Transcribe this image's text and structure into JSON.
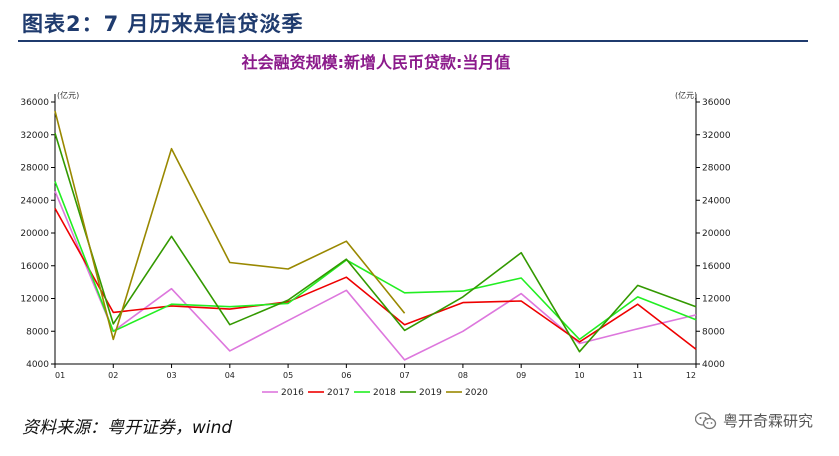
{
  "header": {
    "title": "图表2：7 月历来是信贷淡季"
  },
  "footer": {
    "source": "资料来源：粤开证券，wind",
    "watermark": "粤开奇霖研究"
  },
  "chart_data": {
    "type": "line",
    "title": "社会融资规模:新增人民币贷款:当月值",
    "unit_left": "(亿元)",
    "unit_right": "(亿元)",
    "categories": [
      "01",
      "02",
      "03",
      "04",
      "05",
      "06",
      "07",
      "08",
      "09",
      "10",
      "11",
      "12"
    ],
    "ylim": [
      4000,
      36000
    ],
    "yticks": [
      4000,
      8000,
      12000,
      16000,
      20000,
      24000,
      28000,
      32000,
      36000
    ],
    "grid": false,
    "legend_position": "bottom",
    "series": [
      {
        "name": "2016",
        "color": "#dd77dd",
        "values": [
          25100,
          8000,
          13200,
          5600,
          9300,
          13000,
          4500,
          8000,
          12600,
          6500,
          8300,
          10000
        ]
      },
      {
        "name": "2017",
        "color": "#ee0000",
        "values": [
          23000,
          10300,
          11100,
          10700,
          11600,
          14600,
          8800,
          11500,
          11700,
          6700,
          11300,
          5800
        ]
      },
      {
        "name": "2018",
        "color": "#22ee22",
        "values": [
          26300,
          8000,
          11300,
          11000,
          11400,
          16700,
          12700,
          12900,
          14500,
          7000,
          12200,
          9400
        ]
      },
      {
        "name": "2019",
        "color": "#339900",
        "values": [
          32200,
          8900,
          19600,
          8800,
          11800,
          16800,
          8100,
          12200,
          17600,
          5500,
          13600,
          11000
        ]
      },
      {
        "name": "2020",
        "color": "#998800",
        "values": [
          34900,
          7000,
          30300,
          16400,
          15600,
          19000,
          10200,
          null,
          null,
          null,
          null,
          null
        ]
      }
    ]
  }
}
